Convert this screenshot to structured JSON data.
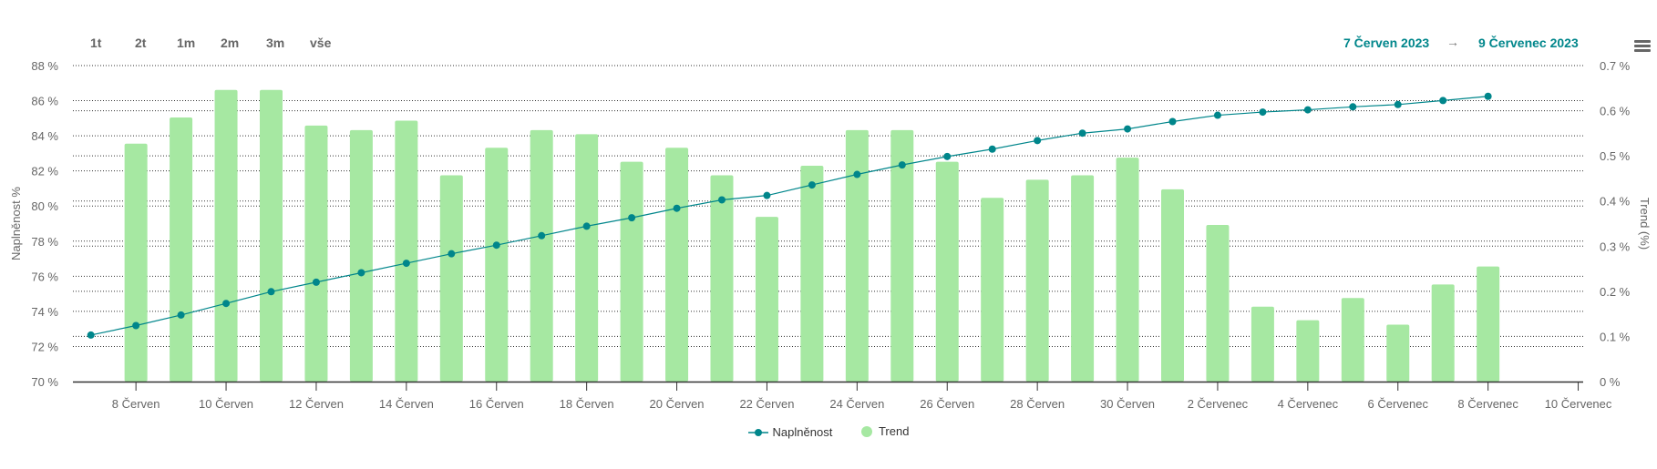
{
  "range_buttons": [
    "1t",
    "2t",
    "1m",
    "2m",
    "3m",
    "vše"
  ],
  "date_range": {
    "from": "7 Červen 2023",
    "arrow": "→",
    "to": "9 Červenec 2023"
  },
  "menu_icon": "hamburger-menu-icon",
  "colors": {
    "line": "#00868b",
    "bar": "#a6e8a2",
    "grid": "#333333"
  },
  "chart_data": {
    "type": "bar+line",
    "x": [
      "7 Červen",
      "8 Červen",
      "9 Červen",
      "10 Červen",
      "11 Červen",
      "12 Červen",
      "13 Červen",
      "14 Červen",
      "15 Červen",
      "16 Červen",
      "17 Červen",
      "18 Červen",
      "19 Červen",
      "20 Červen",
      "21 Červen",
      "22 Červen",
      "23 Červen",
      "24 Červen",
      "25 Červen",
      "26 Červen",
      "27 Červen",
      "28 Červen",
      "29 Červen",
      "30 Červen",
      "1 Červenec",
      "2 Červenec",
      "3 Červenec",
      "4 Červenec",
      "5 Červenec",
      "6 Červenec",
      "7 Červenec",
      "8 Červenec"
    ],
    "x_tick_labels": [
      "8 Červen",
      "10 Červen",
      "12 Červen",
      "14 Červen",
      "16 Červen",
      "18 Červen",
      "20 Červen",
      "22 Červen",
      "24 Červen",
      "26 Červen",
      "28 Červen",
      "30 Červen",
      "2 Červenec",
      "4 Červenec",
      "6 Červenec",
      "8 Červenec",
      "10 Červenec"
    ],
    "series": [
      {
        "name": "Naplněnost",
        "type": "line",
        "axis": "left",
        "values": [
          72.65,
          73.19,
          73.79,
          74.45,
          75.12,
          75.66,
          76.2,
          76.74,
          77.28,
          77.77,
          78.31,
          78.85,
          79.33,
          79.87,
          80.35,
          80.6,
          81.2,
          81.8,
          82.34,
          82.82,
          83.24,
          83.73,
          84.15,
          84.39,
          84.81,
          85.17,
          85.35,
          85.48,
          85.65,
          85.78,
          86.01,
          86.25
        ]
      },
      {
        "name": "Trend",
        "type": "bar",
        "axis": "right",
        "values": [
          null,
          0.527,
          0.585,
          0.646,
          0.646,
          0.567,
          0.557,
          0.578,
          0.457,
          0.518,
          0.557,
          0.548,
          0.487,
          0.518,
          0.457,
          0.365,
          0.478,
          0.557,
          0.557,
          0.487,
          0.407,
          0.447,
          0.457,
          0.496,
          0.426,
          0.347,
          0.166,
          0.136,
          0.185,
          0.126,
          0.215,
          0.255
        ]
      }
    ],
    "left_axis": {
      "label": "Naplněnost %",
      "ylim": [
        70,
        88
      ],
      "ticks": [
        "70 %",
        "72 %",
        "74 %",
        "76 %",
        "78 %",
        "80 %",
        "82 %",
        "84 %",
        "86 %",
        "88 %"
      ]
    },
    "right_axis": {
      "label": "Trend (%)",
      "ylim": [
        0,
        0.7
      ],
      "ticks": [
        "0 %",
        "0.1 %",
        "0.2 %",
        "0.3 %",
        "0.4 %",
        "0.5 %",
        "0.6 %",
        "0.7 %"
      ]
    },
    "legend": [
      "Naplněnost",
      "Trend"
    ],
    "legend_position": "bottom",
    "grid": true
  }
}
